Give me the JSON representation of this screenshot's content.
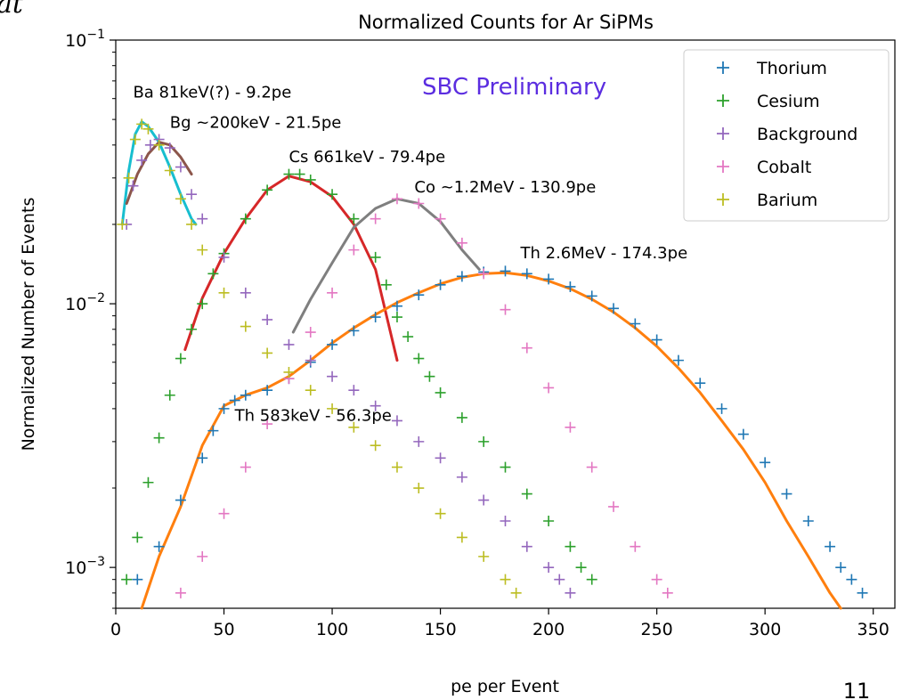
{
  "page_number": "11",
  "corner_text": "at",
  "chart_data": {
    "type": "scatter",
    "title": "Normalized Counts for Ar SiPMs",
    "xlabel": "pe per Event",
    "ylabel": "Normalized Number of Events",
    "xlim": [
      0,
      360
    ],
    "ylim": [
      0.0007,
      0.1
    ],
    "yscale": "log",
    "x_ticks": [
      0,
      50,
      100,
      150,
      200,
      250,
      300,
      350
    ],
    "x_tick_labels": [
      "0",
      "50",
      "100",
      "150",
      "200",
      "250",
      "300",
      "350"
    ],
    "y_ticks": [
      0.001,
      0.01,
      0.1
    ],
    "y_tick_labels": [
      {
        "base": "10",
        "exp": "−3"
      },
      {
        "base": "10",
        "exp": "−2"
      },
      {
        "base": "10",
        "exp": "−1"
      }
    ],
    "grid": false,
    "legend_position": "top-right",
    "watermark": {
      "text": "SBC Preliminary",
      "color": "#5b2de0"
    },
    "series": [
      {
        "name": "Thorium",
        "color": "#1f77b4",
        "points": [
          [
            10,
            0.0009
          ],
          [
            20,
            0.0012
          ],
          [
            30,
            0.0018
          ],
          [
            40,
            0.0026
          ],
          [
            45,
            0.0033
          ],
          [
            50,
            0.004
          ],
          [
            55,
            0.0043
          ],
          [
            60,
            0.0045
          ],
          [
            70,
            0.0047
          ],
          [
            80,
            0.0052
          ],
          [
            90,
            0.006
          ],
          [
            100,
            0.007
          ],
          [
            110,
            0.0079
          ],
          [
            120,
            0.0089
          ],
          [
            130,
            0.0098
          ],
          [
            140,
            0.0108
          ],
          [
            150,
            0.0118
          ],
          [
            160,
            0.0127
          ],
          [
            170,
            0.0132
          ],
          [
            180,
            0.0133
          ],
          [
            190,
            0.013
          ],
          [
            200,
            0.0124
          ],
          [
            210,
            0.0116
          ],
          [
            220,
            0.0107
          ],
          [
            230,
            0.0096
          ],
          [
            240,
            0.0084
          ],
          [
            250,
            0.0073
          ],
          [
            260,
            0.0061
          ],
          [
            270,
            0.005
          ],
          [
            280,
            0.004
          ],
          [
            290,
            0.0032
          ],
          [
            300,
            0.0025
          ],
          [
            310,
            0.0019
          ],
          [
            320,
            0.0015
          ],
          [
            330,
            0.0012
          ],
          [
            335,
            0.001
          ],
          [
            340,
            0.0009
          ],
          [
            345,
            0.0008
          ]
        ]
      },
      {
        "name": "Cesium",
        "color": "#2ca02c",
        "points": [
          [
            5,
            0.0009
          ],
          [
            10,
            0.0013
          ],
          [
            15,
            0.0021
          ],
          [
            20,
            0.0031
          ],
          [
            25,
            0.0045
          ],
          [
            30,
            0.0062
          ],
          [
            35,
            0.008
          ],
          [
            40,
            0.01
          ],
          [
            45,
            0.013
          ],
          [
            50,
            0.0155
          ],
          [
            60,
            0.021
          ],
          [
            70,
            0.027
          ],
          [
            80,
            0.031
          ],
          [
            85,
            0.031
          ],
          [
            90,
            0.0295
          ],
          [
            100,
            0.026
          ],
          [
            110,
            0.021
          ],
          [
            120,
            0.015
          ],
          [
            125,
            0.0118
          ],
          [
            130,
            0.0089
          ],
          [
            135,
            0.0075
          ],
          [
            140,
            0.0062
          ],
          [
            145,
            0.0053
          ],
          [
            150,
            0.0046
          ],
          [
            160,
            0.0037
          ],
          [
            170,
            0.003
          ],
          [
            180,
            0.0024
          ],
          [
            190,
            0.0019
          ],
          [
            200,
            0.0015
          ],
          [
            210,
            0.0012
          ],
          [
            215,
            0.001
          ],
          [
            220,
            0.0009
          ]
        ]
      },
      {
        "name": "Background",
        "color": "#9467bd",
        "points": [
          [
            5,
            0.02
          ],
          [
            8,
            0.028
          ],
          [
            12,
            0.035
          ],
          [
            16,
            0.04
          ],
          [
            20,
            0.042
          ],
          [
            25,
            0.039
          ],
          [
            30,
            0.033
          ],
          [
            35,
            0.026
          ],
          [
            40,
            0.021
          ],
          [
            50,
            0.015
          ],
          [
            60,
            0.011
          ],
          [
            70,
            0.0087
          ],
          [
            80,
            0.007
          ],
          [
            90,
            0.0061
          ],
          [
            100,
            0.0053
          ],
          [
            110,
            0.0047
          ],
          [
            120,
            0.0041
          ],
          [
            130,
            0.0036
          ],
          [
            140,
            0.003
          ],
          [
            150,
            0.0026
          ],
          [
            160,
            0.0022
          ],
          [
            170,
            0.0018
          ],
          [
            180,
            0.0015
          ],
          [
            190,
            0.0012
          ],
          [
            200,
            0.001
          ],
          [
            205,
            0.0009
          ],
          [
            210,
            0.0008
          ]
        ]
      },
      {
        "name": "Cobalt",
        "color": "#e377c2",
        "points": [
          [
            30,
            0.0008
          ],
          [
            40,
            0.0011
          ],
          [
            50,
            0.0016
          ],
          [
            60,
            0.0024
          ],
          [
            70,
            0.0035
          ],
          [
            80,
            0.0052
          ],
          [
            90,
            0.0078
          ],
          [
            100,
            0.011
          ],
          [
            110,
            0.016
          ],
          [
            120,
            0.021
          ],
          [
            130,
            0.025
          ],
          [
            140,
            0.024
          ],
          [
            150,
            0.021
          ],
          [
            160,
            0.017
          ],
          [
            170,
            0.013
          ],
          [
            180,
            0.0095
          ],
          [
            190,
            0.0068
          ],
          [
            200,
            0.0048
          ],
          [
            210,
            0.0034
          ],
          [
            220,
            0.0024
          ],
          [
            230,
            0.0017
          ],
          [
            240,
            0.0012
          ],
          [
            250,
            0.0009
          ],
          [
            255,
            0.0008
          ]
        ]
      },
      {
        "name": "Barium",
        "color": "#bcbd22",
        "points": [
          [
            3,
            0.02
          ],
          [
            6,
            0.03
          ],
          [
            9,
            0.042
          ],
          [
            12,
            0.048
          ],
          [
            15,
            0.046
          ],
          [
            20,
            0.04
          ],
          [
            25,
            0.032
          ],
          [
            30,
            0.025
          ],
          [
            35,
            0.02
          ],
          [
            40,
            0.016
          ],
          [
            50,
            0.011
          ],
          [
            60,
            0.0082
          ],
          [
            70,
            0.0065
          ],
          [
            80,
            0.0055
          ],
          [
            90,
            0.0047
          ],
          [
            100,
            0.004
          ],
          [
            110,
            0.0034
          ],
          [
            120,
            0.0029
          ],
          [
            130,
            0.0024
          ],
          [
            140,
            0.002
          ],
          [
            150,
            0.0016
          ],
          [
            160,
            0.0013
          ],
          [
            170,
            0.0011
          ],
          [
            180,
            0.0009
          ],
          [
            185,
            0.0008
          ]
        ]
      }
    ],
    "fits": [
      {
        "color": "#17becf",
        "points": [
          [
            3,
            0.02
          ],
          [
            6,
            0.032
          ],
          [
            9,
            0.044
          ],
          [
            12,
            0.049
          ],
          [
            15,
            0.047
          ],
          [
            20,
            0.041
          ],
          [
            25,
            0.033
          ],
          [
            30,
            0.026
          ],
          [
            35,
            0.021
          ],
          [
            37,
            0.02
          ]
        ]
      },
      {
        "color": "#8c564b",
        "points": [
          [
            5,
            0.024
          ],
          [
            10,
            0.031
          ],
          [
            15,
            0.037
          ],
          [
            20,
            0.041
          ],
          [
            25,
            0.04
          ],
          [
            30,
            0.036
          ],
          [
            35,
            0.031
          ]
        ]
      },
      {
        "color": "#d62728",
        "points": [
          [
            32,
            0.0067
          ],
          [
            40,
            0.0105
          ],
          [
            50,
            0.0155
          ],
          [
            60,
            0.021
          ],
          [
            70,
            0.027
          ],
          [
            80,
            0.0305
          ],
          [
            90,
            0.029
          ],
          [
            100,
            0.0255
          ],
          [
            110,
            0.02
          ],
          [
            120,
            0.0135
          ],
          [
            130,
            0.0061
          ]
        ]
      },
      {
        "color": "#7f7f7f",
        "points": [
          [
            82,
            0.0078
          ],
          [
            90,
            0.0104
          ],
          [
            100,
            0.0143
          ],
          [
            110,
            0.0195
          ],
          [
            120,
            0.023
          ],
          [
            130,
            0.025
          ],
          [
            140,
            0.024
          ],
          [
            150,
            0.0205
          ],
          [
            160,
            0.016
          ],
          [
            168,
            0.0135
          ]
        ]
      },
      {
        "color": "#ff7f0e",
        "points": [
          [
            12,
            0.0007
          ],
          [
            20,
            0.0011
          ],
          [
            30,
            0.0017
          ],
          [
            40,
            0.0029
          ],
          [
            50,
            0.0041
          ],
          [
            60,
            0.0045
          ],
          [
            70,
            0.0048
          ],
          [
            80,
            0.0053
          ],
          [
            90,
            0.0061
          ],
          [
            100,
            0.0071
          ],
          [
            110,
            0.0081
          ],
          [
            120,
            0.0091
          ],
          [
            130,
            0.0101
          ],
          [
            140,
            0.011
          ],
          [
            150,
            0.0119
          ],
          [
            160,
            0.0126
          ],
          [
            170,
            0.013
          ],
          [
            180,
            0.0131
          ],
          [
            190,
            0.0128
          ],
          [
            200,
            0.0122
          ],
          [
            210,
            0.0114
          ],
          [
            220,
            0.0104
          ],
          [
            230,
            0.0093
          ],
          [
            240,
            0.0081
          ],
          [
            250,
            0.0069
          ],
          [
            260,
            0.0057
          ],
          [
            270,
            0.0046
          ],
          [
            280,
            0.0036
          ],
          [
            290,
            0.0028
          ],
          [
            300,
            0.0021
          ],
          [
            310,
            0.0015
          ],
          [
            320,
            0.0011
          ],
          [
            330,
            0.0008
          ],
          [
            335,
            0.0007
          ]
        ]
      }
    ],
    "annotations": [
      {
        "text": "Ba 81keV(?) - 9.2pe",
        "x": 8,
        "y": 0.0605
      },
      {
        "text": "Bg ~200keV - 21.5pe",
        "x": 25,
        "y": 0.0465
      },
      {
        "text": "Cs 661keV - 79.4pe",
        "x": 80,
        "y": 0.0345
      },
      {
        "text": "Co ~1.2MeV - 130.9pe",
        "x": 138,
        "y": 0.0264
      },
      {
        "text": "Th 2.6MeV - 174.3pe",
        "x": 187,
        "y": 0.0149
      },
      {
        "text": "Th 583keV - 56.3pe",
        "x": 55,
        "y": 0.0036
      }
    ]
  }
}
